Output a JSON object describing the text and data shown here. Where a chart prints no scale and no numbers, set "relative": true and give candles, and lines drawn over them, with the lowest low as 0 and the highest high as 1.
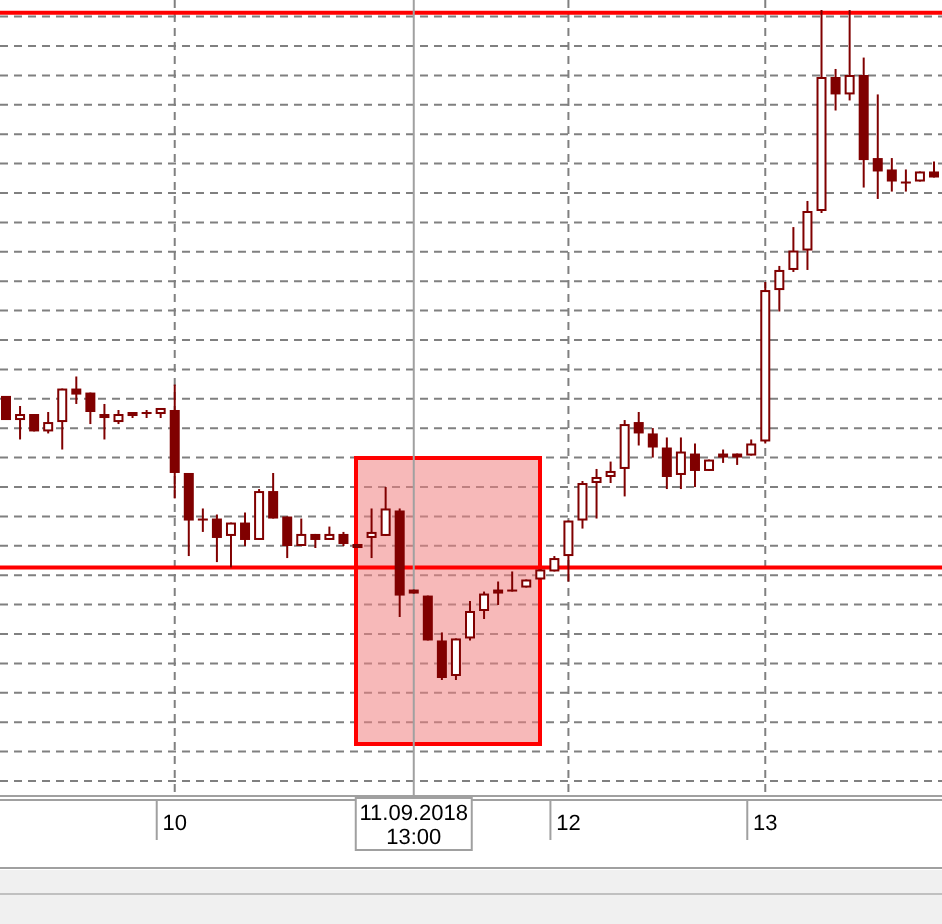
{
  "chart_data": {
    "type": "candlestick",
    "relative": true,
    "color": "#800000",
    "grid": true,
    "categories": [
      null,
      null,
      null,
      null,
      null,
      null,
      null,
      null,
      null,
      null,
      null,
      null,
      "10",
      null,
      null,
      null,
      null,
      null,
      null,
      null,
      null,
      null,
      null,
      null,
      null,
      null,
      null,
      null,
      null,
      "11.09.2018 13:00",
      null,
      null,
      null,
      null,
      null,
      null,
      null,
      null,
      null,
      null,
      "12",
      null,
      null,
      null,
      null,
      null,
      null,
      null,
      null,
      null,
      null,
      null,
      null,
      null,
      "13",
      null,
      null,
      null,
      null,
      null,
      null,
      null,
      null,
      null,
      null,
      null,
      null
    ],
    "ohlc": [
      [
        0.424,
        0.424,
        0.388,
        0.388
      ],
      [
        0.388,
        0.409,
        0.359,
        0.397
      ],
      [
        0.397,
        0.397,
        0.371,
        0.371
      ],
      [
        0.371,
        0.4,
        0.368,
        0.385
      ],
      [
        0.385,
        0.435,
        0.344,
        0.435
      ],
      [
        0.435,
        0.453,
        0.412,
        0.426
      ],
      [
        0.429,
        0.429,
        0.382,
        0.4
      ],
      [
        0.397,
        0.412,
        0.359,
        0.391
      ],
      [
        0.385,
        0.403,
        0.382,
        0.397
      ],
      [
        0.4,
        0.4,
        0.391,
        0.394
      ],
      [
        0.4,
        0.403,
        0.391,
        0.397
      ],
      [
        0.397,
        0.406,
        0.391,
        0.406
      ],
      [
        0.403,
        0.441,
        0.271,
        0.309
      ],
      [
        0.309,
        0.309,
        0.185,
        0.238
      ],
      [
        0.241,
        0.256,
        0.221,
        0.238
      ],
      [
        0.241,
        0.247,
        0.176,
        0.212
      ],
      [
        0.215,
        0.235,
        0.168,
        0.235
      ],
      [
        0.235,
        0.25,
        0.2,
        0.209
      ],
      [
        0.209,
        0.285,
        0.209,
        0.282
      ],
      [
        0.282,
        0.309,
        0.241,
        0.241
      ],
      [
        0.244,
        0.244,
        0.182,
        0.2
      ],
      [
        0.2,
        0.241,
        0.2,
        0.218
      ],
      [
        0.218,
        0.218,
        0.197,
        0.209
      ],
      [
        0.209,
        0.229,
        0.209,
        0.218
      ],
      [
        0.218,
        0.221,
        0.2,
        0.203
      ],
      [
        0.203,
        0.203,
        0.197,
        0.197
      ],
      [
        0.212,
        0.256,
        0.182,
        0.221
      ],
      [
        0.215,
        0.288,
        0.215,
        0.256
      ],
      [
        0.253,
        0.256,
        0.094,
        0.126
      ],
      [
        0.129,
        0.135,
        0.129,
        0.135
      ],
      [
        0.126,
        0.126,
        0.059,
        0.059
      ],
      [
        0.059,
        0.071,
        0.0,
        0.003
      ],
      [
        0.006,
        0.062,
        0.0,
        0.062
      ],
      [
        0.062,
        0.118,
        0.059,
        0.103
      ],
      [
        0.103,
        0.132,
        0.091,
        0.129
      ],
      [
        0.129,
        0.147,
        0.112,
        0.135
      ],
      [
        0.135,
        0.162,
        0.132,
        0.132
      ],
      [
        0.138,
        0.15,
        0.138,
        0.15
      ],
      [
        0.15,
        0.165,
        0.15,
        0.165
      ],
      [
        0.162,
        0.185,
        0.162,
        0.182
      ],
      [
        0.185,
        0.238,
        0.147,
        0.238
      ],
      [
        0.238,
        0.297,
        0.226,
        0.294
      ],
      [
        0.294,
        0.315,
        0.241,
        0.303
      ],
      [
        0.303,
        0.326,
        0.294,
        0.312
      ],
      [
        0.315,
        0.388,
        0.274,
        0.382
      ],
      [
        0.385,
        0.4,
        0.35,
        0.368
      ],
      [
        0.368,
        0.376,
        0.332,
        0.347
      ],
      [
        0.347,
        0.362,
        0.285,
        0.303
      ],
      [
        0.306,
        0.362,
        0.285,
        0.341
      ],
      [
        0.338,
        0.353,
        0.288,
        0.312
      ],
      [
        0.312,
        0.329,
        0.312,
        0.329
      ],
      [
        0.332,
        0.344,
        0.324,
        0.338
      ],
      [
        0.338,
        0.338,
        0.321,
        0.332
      ],
      [
        0.335,
        0.359,
        0.335,
        0.353
      ],
      [
        0.356,
        0.594,
        0.353,
        0.582
      ],
      [
        0.582,
        0.618,
        0.55,
        0.612
      ],
      [
        0.612,
        0.676,
        0.609,
        0.641
      ],
      [
        0.641,
        0.715,
        0.612,
        0.7
      ],
      [
        0.7,
        1.0,
        0.697,
        0.9
      ],
      [
        0.9,
        0.912,
        0.85,
        0.874
      ],
      [
        0.874,
        1.0,
        0.865,
        0.903
      ],
      [
        0.903,
        0.929,
        0.735,
        0.776
      ],
      [
        0.779,
        0.874,
        0.718,
        0.759
      ],
      [
        0.762,
        0.779,
        0.729,
        0.744
      ],
      [
        0.744,
        0.762,
        0.729,
        0.744
      ],
      [
        0.744,
        0.759,
        0.744,
        0.759
      ],
      [
        0.759,
        0.774,
        0.75,
        0.75
      ]
    ],
    "ref_lines": [
      {
        "axis": "y",
        "value": 0.168,
        "color": "#ff0000"
      },
      {
        "axis": "y",
        "value": 0.996,
        "color": "#ff0000"
      },
      {
        "axis": "x",
        "value": "11.09.2018 13:00",
        "color": "#a0a0a0"
      }
    ]
  }
}
